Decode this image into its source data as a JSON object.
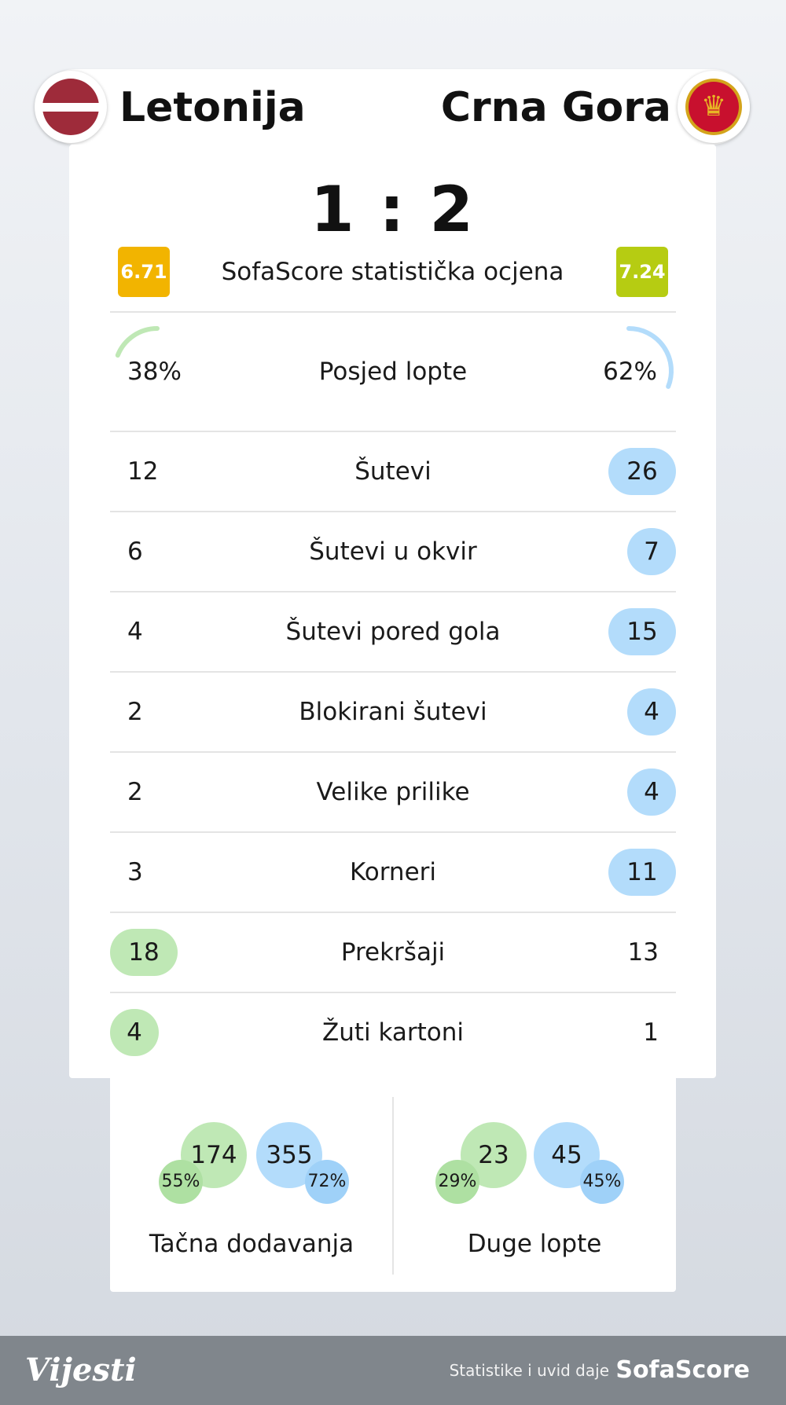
{
  "teams": {
    "home": {
      "name": "Letonija",
      "flag_icon": "latvia-flag-icon"
    },
    "away": {
      "name": "Crna Gora",
      "flag_icon": "montenegro-flag-icon"
    }
  },
  "score": "1 : 2",
  "rating": {
    "label": "SofaScore statistička ocjena",
    "home": "6.71",
    "away": "7.24"
  },
  "possession": {
    "label": "Posjed lopte",
    "home": "38%",
    "away": "62%",
    "home_fraction": 0.38,
    "away_fraction": 0.62
  },
  "stats": [
    {
      "label": "Šutevi",
      "home": "12",
      "away": "26"
    },
    {
      "label": "Šutevi u okvir",
      "home": "6",
      "away": "7"
    },
    {
      "label": "Šutevi pored gola",
      "home": "4",
      "away": "15"
    },
    {
      "label": "Blokirani šutevi",
      "home": "2",
      "away": "4"
    },
    {
      "label": "Velike prilike",
      "home": "2",
      "away": "4"
    },
    {
      "label": "Korneri",
      "home": "3",
      "away": "11"
    },
    {
      "label": "Prekršaji",
      "home": "18",
      "away": "13"
    },
    {
      "label": "Žuti kartoni",
      "home": "4",
      "away": "1"
    }
  ],
  "passing": [
    {
      "label": "Tačna dodavanja",
      "home_value": "174",
      "home_pct": "55%",
      "away_value": "355",
      "away_pct": "72%"
    },
    {
      "label": "Duge lopte",
      "home_value": "23",
      "home_pct": "29%",
      "away_value": "45",
      "away_pct": "45%"
    }
  ],
  "colors": {
    "home": "#bfe8b5",
    "away": "#b3dcfb",
    "rating_home": "#f2b400",
    "rating_away": "#b6cc12",
    "footer": "#80868c"
  },
  "footer": {
    "logo": "Vijesti",
    "credit": "Statistike i uvid daje",
    "brand": "SofaScore"
  }
}
